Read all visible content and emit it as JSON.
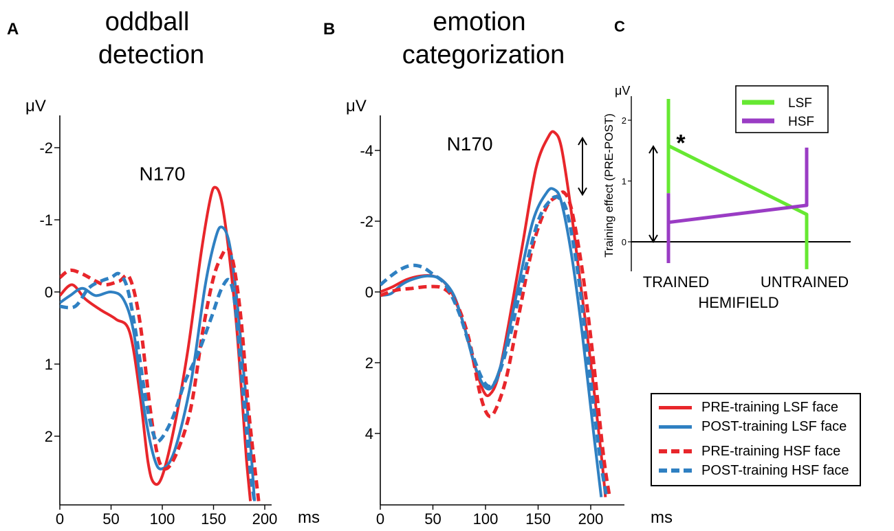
{
  "colors": {
    "red": "#e8262b",
    "blue": "#2f80c2",
    "green": "#66e832",
    "purple": "#9a3cc4",
    "axis": "#000000"
  },
  "panels": {
    "A": {
      "letter": "A",
      "title_line1": "oddball",
      "title_line2": "detection"
    },
    "B": {
      "letter": "B",
      "title_line1": "emotion",
      "title_line2": "categorization"
    },
    "C": {
      "letter": "C"
    }
  },
  "legend_main": [
    {
      "label": "PRE-training   LSF face",
      "color": "#e8262b",
      "dashed": false
    },
    {
      "label": "POST-training LSF face",
      "color": "#2f80c2",
      "dashed": false
    },
    {
      "label": "PRE-training   HSF face",
      "color": "#e8262b",
      "dashed": true
    },
    {
      "label": "POST-training HSF face",
      "color": "#2f80c2",
      "dashed": true
    }
  ],
  "chart_data": [
    {
      "id": "A",
      "type": "line",
      "title": "oddball detection",
      "xlabel": "ms",
      "ylabel": "μV",
      "xlim": [
        0,
        205
      ],
      "ylim": [
        2.9,
        -2.4
      ],
      "y_inverted": true,
      "x_ticks": [
        0,
        50,
        100,
        150,
        200
      ],
      "y_ticks": [
        -2,
        -1,
        0,
        1,
        2
      ],
      "annotations": [
        {
          "text": "N170",
          "x": 100,
          "y": -1.55
        }
      ],
      "series": [
        {
          "name": "PRE-training LSF face",
          "color": "red",
          "dashed": false,
          "x": [
            0,
            12,
            25,
            40,
            55,
            68,
            78,
            86,
            92,
            100,
            112,
            125,
            138,
            147,
            152,
            158,
            165,
            172,
            178,
            182,
            186
          ],
          "y": [
            0.05,
            -0.1,
            0.1,
            0.25,
            0.38,
            0.55,
            1.4,
            2.35,
            2.65,
            2.55,
            1.85,
            0.8,
            -0.55,
            -1.3,
            -1.45,
            -1.25,
            -0.55,
            0.4,
            1.5,
            2.3,
            2.9
          ]
        },
        {
          "name": "POST-training LSF face",
          "color": "blue",
          "dashed": false,
          "x": [
            0,
            10,
            22,
            35,
            50,
            62,
            72,
            82,
            92,
            100,
            112,
            128,
            142,
            152,
            158,
            165,
            172,
            180,
            186,
            190
          ],
          "y": [
            0.15,
            0.05,
            -0.05,
            0.05,
            0.0,
            0.1,
            0.55,
            1.6,
            2.3,
            2.45,
            2.2,
            1.25,
            -0.1,
            -0.75,
            -0.9,
            -0.7,
            0.0,
            1.2,
            2.1,
            2.9
          ]
        },
        {
          "name": "PRE-training HSF face",
          "color": "red",
          "dashed": true,
          "x": [
            0,
            10,
            22,
            35,
            45,
            58,
            68,
            78,
            88,
            96,
            104,
            115,
            128,
            140,
            150,
            158,
            164,
            170,
            177,
            184,
            190,
            194
          ],
          "y": [
            -0.2,
            -0.3,
            -0.25,
            -0.15,
            -0.1,
            -0.15,
            -0.2,
            0.4,
            1.6,
            2.3,
            2.45,
            2.2,
            1.6,
            0.5,
            -0.2,
            -0.5,
            -0.6,
            -0.35,
            0.4,
            1.6,
            2.4,
            2.9
          ]
        },
        {
          "name": "POST-training HSF face",
          "color": "blue",
          "dashed": true,
          "x": [
            0,
            15,
            28,
            40,
            50,
            58,
            66,
            74,
            84,
            92,
            98,
            110,
            122,
            135,
            148,
            158,
            166,
            172,
            180,
            186,
            190
          ],
          "y": [
            0.2,
            0.2,
            -0.05,
            -0.15,
            -0.2,
            -0.25,
            -0.05,
            0.55,
            1.5,
            2.0,
            2.05,
            1.75,
            1.25,
            0.85,
            0.35,
            -0.05,
            -0.15,
            0.3,
            1.6,
            2.5,
            2.9
          ]
        }
      ]
    },
    {
      "id": "B",
      "type": "line",
      "title": "emotion categorization",
      "xlabel": "ms",
      "ylabel": "μV",
      "xlim": [
        0,
        215
      ],
      "ylim": [
        5.8,
        -5.0
      ],
      "y_inverted": true,
      "x_ticks": [
        0,
        50,
        100,
        150,
        200
      ],
      "y_ticks": [
        -4,
        -2,
        0,
        2,
        4
      ],
      "annotations": [
        {
          "text": "N170",
          "x": 85,
          "y": -4.0
        }
      ],
      "series": [
        {
          "name": "PRE-training LSF face",
          "color": "red",
          "dashed": false,
          "x": [
            0,
            12,
            25,
            38,
            50,
            60,
            70,
            80,
            90,
            98,
            104,
            112,
            122,
            135,
            148,
            160,
            166,
            172,
            180,
            190,
            200,
            210,
            214
          ],
          "y": [
            0.0,
            -0.15,
            -0.35,
            -0.45,
            -0.45,
            -0.3,
            0.15,
            1.0,
            2.1,
            2.8,
            2.9,
            2.4,
            0.9,
            -1.3,
            -3.5,
            -4.4,
            -4.5,
            -4.1,
            -2.6,
            -0.3,
            2.0,
            4.6,
            5.8
          ]
        },
        {
          "name": "POST-training LSF face",
          "color": "blue",
          "dashed": false,
          "x": [
            0,
            10,
            20,
            30,
            45,
            58,
            70,
            80,
            90,
            100,
            108,
            118,
            130,
            145,
            158,
            165,
            172,
            182,
            192,
            202,
            210
          ],
          "y": [
            0.1,
            0.05,
            -0.2,
            -0.35,
            -0.45,
            -0.35,
            0.1,
            1.0,
            2.1,
            2.7,
            2.6,
            1.7,
            0.0,
            -2.0,
            -2.8,
            -2.9,
            -2.55,
            -1.0,
            1.2,
            3.8,
            5.8
          ]
        },
        {
          "name": "PRE-training HSF face",
          "color": "red",
          "dashed": true,
          "x": [
            0,
            15,
            30,
            45,
            60,
            72,
            84,
            95,
            103,
            110,
            120,
            132,
            145,
            158,
            168,
            175,
            182,
            192,
            202,
            212,
            218
          ],
          "y": [
            0.1,
            -0.05,
            -0.1,
            -0.15,
            -0.1,
            0.3,
            1.3,
            2.9,
            3.5,
            3.3,
            2.4,
            0.6,
            -1.3,
            -2.4,
            -2.7,
            -2.8,
            -2.3,
            -0.6,
            1.8,
            4.6,
            5.8
          ]
        },
        {
          "name": "POST-training HSF face",
          "color": "blue",
          "dashed": true,
          "x": [
            0,
            10,
            20,
            30,
            40,
            50,
            62,
            75,
            88,
            100,
            110,
            122,
            135,
            150,
            162,
            170,
            178,
            188,
            198,
            208,
            215
          ],
          "y": [
            -0.2,
            -0.45,
            -0.65,
            -0.75,
            -0.7,
            -0.5,
            -0.2,
            0.6,
            1.8,
            2.6,
            2.5,
            1.4,
            -0.3,
            -2.0,
            -2.6,
            -2.65,
            -2.2,
            -0.5,
            2.0,
            4.5,
            5.8
          ]
        }
      ]
    },
    {
      "id": "C",
      "type": "line",
      "title": "",
      "xlabel": "HEMIFIELD",
      "ylabel": "Training effect (PRE-POST)",
      "yunit": "μV",
      "categories": [
        "TRAINED",
        "UNTRAINED"
      ],
      "ylim": [
        -0.5,
        2.45
      ],
      "y_ticks": [
        0,
        1,
        2
      ],
      "annotations": [
        {
          "text": "*",
          "category": "TRAINED",
          "y": 1.7
        }
      ],
      "series": [
        {
          "name": "LSF",
          "color": "green",
          "values": [
            1.58,
            0.45
          ],
          "error_low": [
            0.8,
            -0.45
          ],
          "error_high": [
            2.35,
            0.45
          ]
        },
        {
          "name": "HSF",
          "color": "purple",
          "values": [
            0.32,
            0.6
          ],
          "error_low": [
            -0.35,
            0.6
          ],
          "error_high": [
            0.8,
            1.55
          ]
        }
      ]
    }
  ]
}
